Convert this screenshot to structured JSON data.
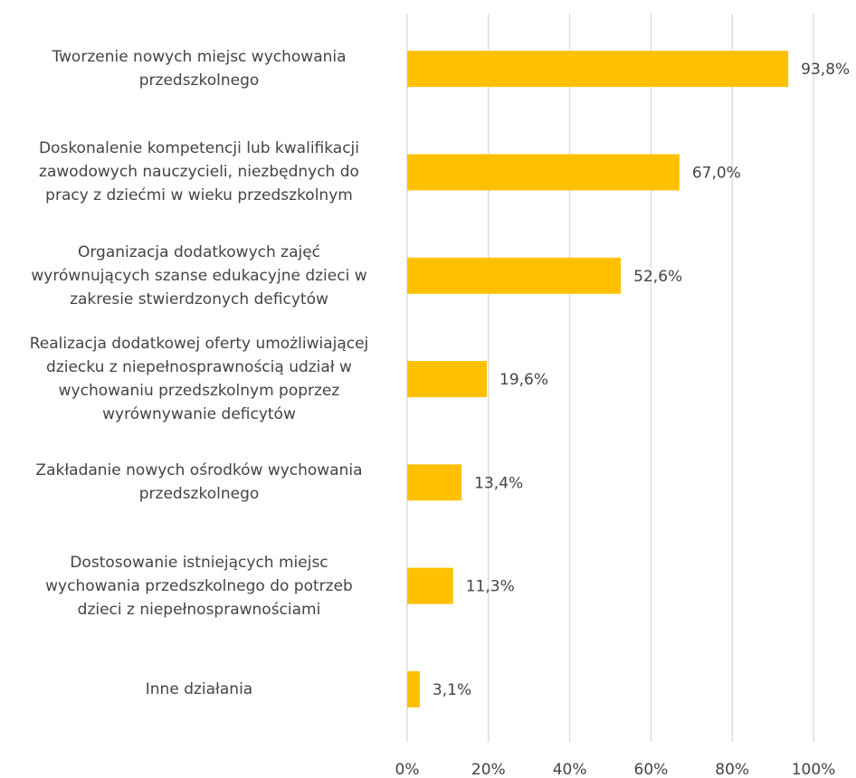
{
  "chart_data": {
    "type": "bar",
    "orientation": "horizontal",
    "categories": [
      "Tworzenie nowych miejsc wychowania\nprzedszkolnego",
      "Doskonalenie kompetencji lub kwalifikacji\nzawodowych nauczycieli, niezbędnych do\npracy z dziećmi w wieku przedszkolnym",
      "Organizacja dodatkowych zajęć\nwyrównujących szanse edukacyjne dzieci w\nzakresie stwierdzonych deficytów",
      "Realizacja dodatkowej oferty  umożliwiającej\ndziecku z niepełnosprawnością udział w\nwychowaniu przedszkolnym poprzez\nwyrównywanie deficytów",
      "Zakładanie nowych ośrodków wychowania\nprzedszkolnego",
      "Dostosowanie istniejących miejsc\nwychowania przedszkolnego do potrzeb\ndzieci z niepełnosprawnościami",
      "Inne działania"
    ],
    "values": [
      93.8,
      67.0,
      52.6,
      19.6,
      13.4,
      11.3,
      3.1
    ],
    "value_labels": [
      "93,8%",
      "67,0%",
      "52,6%",
      "19,6%",
      "13,4%",
      "11,3%",
      "3,1%"
    ],
    "color": "#ffc000",
    "xlim": [
      0,
      100
    ],
    "xticks": [
      {
        "value": 0,
        "label": "0%"
      },
      {
        "value": 20,
        "label": "20%"
      },
      {
        "value": 40,
        "label": "40%"
      },
      {
        "value": 60,
        "label": "60%"
      },
      {
        "value": 80,
        "label": "80%"
      },
      {
        "value": 100,
        "label": "100%"
      }
    ],
    "grid": true
  }
}
